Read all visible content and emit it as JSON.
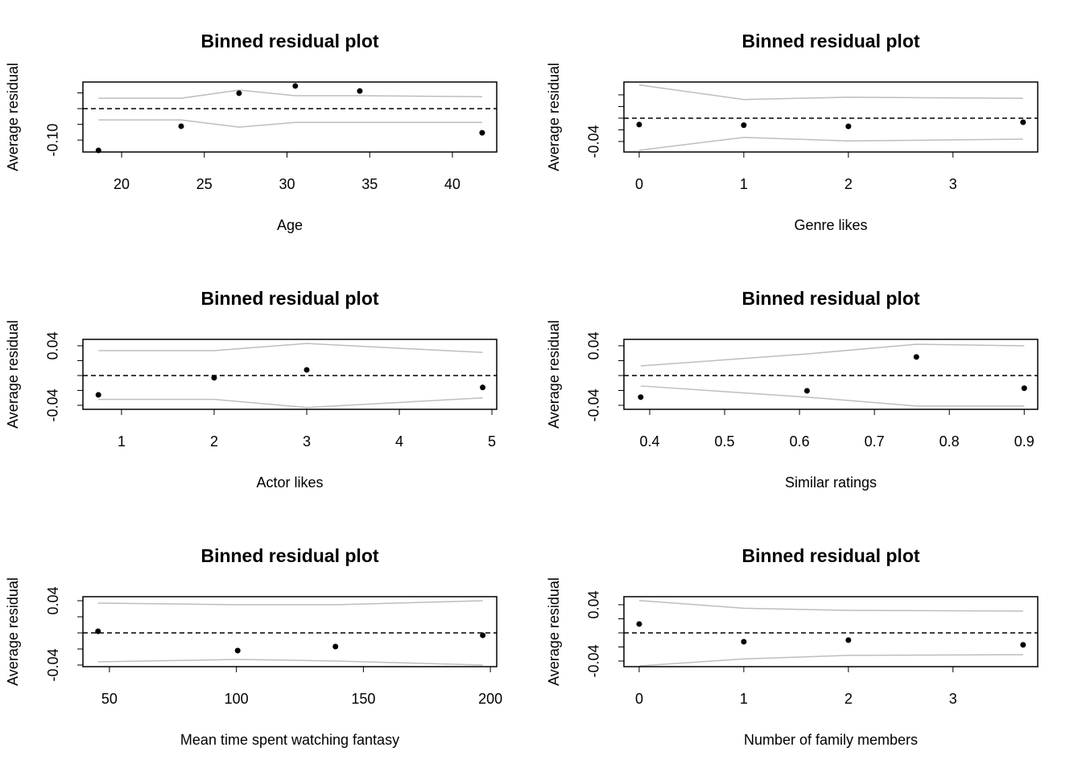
{
  "chart_data": [
    {
      "type": "scatter",
      "title": "Binned residual plot",
      "x_label": "Age",
      "y_label": "Average residual",
      "x": [
        18.6,
        23.6,
        27.1,
        30.5,
        34.4,
        41.8
      ],
      "values": [
        -0.133,
        -0.056,
        0.049,
        0.072,
        0.056,
        -0.077
      ],
      "upper": [
        0.033,
        0.033,
        0.059,
        0.041,
        0.041,
        0.038
      ],
      "lower": [
        -0.036,
        -0.036,
        -0.059,
        -0.044,
        -0.044,
        -0.044
      ],
      "hline": 0,
      "point_color": "#000000",
      "band_color": "#bebebe",
      "xlim": [
        17.66,
        42.68
      ],
      "ylim": [
        -0.138,
        0.0846
      ],
      "xticks": [
        20,
        25,
        30,
        35,
        40
      ],
      "yticks": [
        {
          "value": -0.1,
          "label": "-0.10"
        },
        {
          "value": -0.05,
          "label": null
        },
        {
          "value": 0,
          "label": null
        },
        {
          "value": 0.05,
          "label": null
        }
      ]
    },
    {
      "type": "scatter",
      "title": "Binned residual plot",
      "x_label": "Genre likes",
      "y_label": "Average residual",
      "x": [
        0,
        1,
        2,
        3.67
      ],
      "values": [
        -0.011,
        -0.012,
        -0.014,
        -0.007
      ],
      "upper": [
        0.057,
        0.032,
        0.036,
        0.034
      ],
      "lower": [
        -0.055,
        -0.033,
        -0.039,
        -0.036
      ],
      "hline": 0,
      "point_color": "#000000",
      "band_color": "#bebebe",
      "xlim": [
        -0.146,
        3.81
      ],
      "ylim": [
        -0.058,
        0.062
      ],
      "xticks": [
        0,
        1,
        2,
        3
      ],
      "yticks": [
        -0.04,
        {
          "value": -0.02,
          "label": null
        },
        {
          "value": 0,
          "label": null
        },
        {
          "value": 0.02,
          "label": null
        },
        {
          "value": 0.04,
          "label": null
        }
      ]
    },
    {
      "type": "scatter",
      "title": "Binned residual plot",
      "x_label": "Actor likes",
      "y_label": "Average residual",
      "x": [
        0.75,
        2,
        3,
        4.9
      ],
      "values": [
        -0.026,
        -0.003,
        0.0076,
        -0.016
      ],
      "upper": [
        0.0335,
        0.0335,
        0.043,
        0.031
      ],
      "lower": [
        -0.032,
        -0.032,
        -0.043,
        -0.03
      ],
      "hline": 0,
      "point_color": "#000000",
      "band_color": "#bebebe",
      "xlim": [
        0.583,
        5.052
      ],
      "ylim": [
        -0.0454,
        0.0486
      ],
      "xticks": [
        1,
        2,
        3,
        4,
        5
      ],
      "yticks": [
        -0.04,
        {
          "value": -0.02,
          "label": null
        },
        {
          "value": 0,
          "label": null
        },
        {
          "value": 0.02,
          "label": null
        },
        0.04
      ]
    },
    {
      "type": "scatter",
      "title": "Binned residual plot",
      "x_label": "Similar ratings",
      "y_label": "Average residual",
      "x": [
        0.388,
        0.61,
        0.756,
        0.9
      ],
      "values": [
        -0.029,
        -0.0205,
        0.025,
        -0.017
      ],
      "upper": [
        0.013,
        0.029,
        0.042,
        0.04
      ],
      "lower": [
        -0.014,
        -0.029,
        -0.041,
        -0.041
      ],
      "hline": 0,
      "point_color": "#000000",
      "band_color": "#bebebe",
      "xlim": [
        0.3656,
        0.918
      ],
      "ylim": [
        -0.0454,
        0.0486
      ],
      "xticks": [
        0.4,
        0.5,
        0.6,
        0.7,
        0.8,
        0.9
      ],
      "yticks": [
        -0.04,
        {
          "value": -0.02,
          "label": null
        },
        {
          "value": 0,
          "label": null
        },
        {
          "value": 0.02,
          "label": null
        },
        0.04
      ]
    },
    {
      "type": "scatter",
      "title": "Binned residual plot",
      "x_label": "Mean time spent watching fantasy",
      "y_label": "Average residual",
      "x": [
        45.5,
        100.5,
        139,
        197
      ],
      "values": [
        0.002,
        -0.022,
        -0.017,
        -0.003
      ],
      "upper": [
        0.037,
        0.035,
        0.035,
        0.04
      ],
      "lower": [
        -0.036,
        -0.033,
        -0.035,
        -0.04
      ],
      "hline": 0,
      "point_color": "#000000",
      "band_color": "#bebebe",
      "xlim": [
        39.56,
        202.5
      ],
      "ylim": [
        -0.042,
        0.045
      ],
      "xticks": [
        50,
        100,
        150,
        200
      ],
      "yticks": [
        -0.04,
        {
          "value": -0.02,
          "label": null
        },
        {
          "value": 0,
          "label": null
        },
        {
          "value": 0.02,
          "label": null
        },
        0.04
      ]
    },
    {
      "type": "scatter",
      "title": "Binned residual plot",
      "x_label": "Number of family members",
      "y_label": "Average residual",
      "x": [
        0,
        1,
        2,
        3.67
      ],
      "values": [
        0.0126,
        -0.0126,
        -0.0103,
        -0.017
      ],
      "upper": [
        0.046,
        0.035,
        0.032,
        0.031
      ],
      "lower": [
        -0.047,
        -0.037,
        -0.032,
        -0.031
      ],
      "hline": 0,
      "point_color": "#000000",
      "band_color": "#bebebe",
      "xlim": [
        -0.146,
        3.81
      ],
      "ylim": [
        -0.048,
        0.0514
      ],
      "xticks": [
        0,
        1,
        2,
        3
      ],
      "yticks": [
        -0.04,
        {
          "value": -0.02,
          "label": null
        },
        {
          "value": 0,
          "label": null
        },
        {
          "value": 0.02,
          "label": null
        },
        0.04
      ]
    }
  ]
}
